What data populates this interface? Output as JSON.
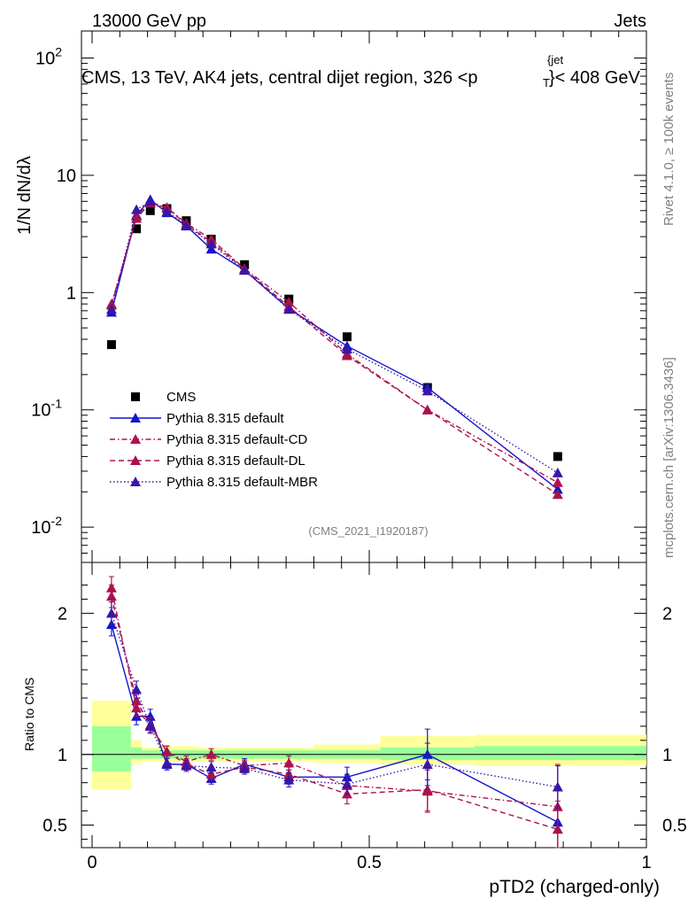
{
  "header": {
    "left": "13000 GeV pp",
    "right": "Jets",
    "title": "CMS, 13 TeV, AK4 jets, central dijet region, 326 <p",
    "title_sup": "{jet",
    "title_sub": "T",
    "title_end": "}< 408 GeV"
  },
  "side": {
    "rivet": "Rivet 4.1.0, ≥ 100k events",
    "mcplots": "mcplots.cern.ch [arXiv:1306.3436]"
  },
  "watermark": "(CMS_2021_I1920187)",
  "ylabel_top": "1/N dN/dλ",
  "ylabel_bottom": "Ratio to CMS",
  "xlabel": "pTD2 (charged-only)",
  "colors": {
    "cms": "#000000",
    "default": "#1515cc",
    "cd": "#b0104f",
    "dl": "#a8124e",
    "mbr": "#3a16a8",
    "band_inner": "#99ff99",
    "band_outer": "#ffff99"
  },
  "chart_data": [
    {
      "type": "scatter",
      "panel": "main",
      "yscale": "log",
      "xlim": [
        0,
        1
      ],
      "ylim": [
        0.005,
        170
      ],
      "y_ticks": [
        "10^-2",
        "10^-1",
        "1",
        "10",
        "10^2"
      ],
      "x": [
        0.035,
        0.08,
        0.105,
        0.135,
        0.17,
        0.215,
        0.275,
        0.355,
        0.46,
        0.605,
        0.84
      ],
      "series": [
        {
          "name": "CMS",
          "style": "square",
          "color": "#000000",
          "values": [
            0.36,
            3.5,
            5.0,
            5.2,
            4.1,
            2.85,
            1.73,
            0.88,
            0.42,
            0.155,
            0.04
          ]
        },
        {
          "name": "Pythia 8.315 default",
          "style": "solid",
          "color": "#1515cc",
          "values": [
            0.68,
            4.6,
            6.2,
            4.8,
            3.7,
            2.35,
            1.55,
            0.73,
            0.35,
            0.155,
            0.021
          ]
        },
        {
          "name": "Pythia 8.315 default-CD",
          "style": "dashdot",
          "color": "#b0104f",
          "values": [
            0.8,
            4.3,
            5.8,
            5.3,
            3.9,
            2.85,
            1.6,
            0.83,
            0.3,
            0.1,
            0.024
          ]
        },
        {
          "name": "Pythia 8.315 default-DL",
          "style": "dashed",
          "color": "#a8124e",
          "values": [
            0.78,
            4.5,
            5.9,
            5.3,
            3.8,
            2.7,
            1.58,
            0.76,
            0.29,
            0.1,
            0.019
          ]
        },
        {
          "name": "Pythia 8.315 default-MBR",
          "style": "dotted",
          "color": "#3a16a8",
          "values": [
            0.72,
            5.1,
            6.0,
            4.9,
            3.75,
            2.6,
            1.55,
            0.72,
            0.33,
            0.145,
            0.029
          ]
        }
      ]
    },
    {
      "type": "line",
      "panel": "ratio",
      "ylabel": "Ratio to CMS",
      "xlabel": "pTD2 (charged-only)",
      "xlim": [
        0,
        1
      ],
      "ylim": [
        0.34,
        2.36
      ],
      "x_ticks": [
        "0",
        "0.5",
        "1"
      ],
      "y_ticks": [
        "0.5",
        "1",
        "2"
      ],
      "band_edges": [
        0,
        0.07,
        0.09,
        0.12,
        0.15,
        0.19,
        0.24,
        0.31,
        0.4,
        0.52,
        0.69,
        1.0
      ],
      "band_inner": [
        [
          0.88,
          1.2
        ],
        [
          0.97,
          1.05
        ],
        [
          0.97,
          1.03
        ],
        [
          0.97,
          1.03
        ],
        [
          0.97,
          1.03
        ],
        [
          0.97,
          1.03
        ],
        [
          0.97,
          1.03
        ],
        [
          0.97,
          1.03
        ],
        [
          0.97,
          1.03
        ],
        [
          0.96,
          1.05
        ],
        [
          0.96,
          1.06
        ]
      ],
      "band_outer": [
        [
          0.75,
          1.38
        ],
        [
          0.93,
          1.1
        ],
        [
          0.95,
          1.05
        ],
        [
          0.95,
          1.06
        ],
        [
          0.95,
          1.06
        ],
        [
          0.95,
          1.05
        ],
        [
          0.95,
          1.05
        ],
        [
          0.95,
          1.05
        ],
        [
          0.94,
          1.07
        ],
        [
          0.93,
          1.13
        ],
        [
          0.92,
          1.14
        ]
      ],
      "x": [
        0.035,
        0.08,
        0.105,
        0.135,
        0.17,
        0.215,
        0.275,
        0.355,
        0.46,
        0.605,
        0.84
      ],
      "series": [
        {
          "name": "Pythia 8.315 default",
          "color": "#1515cc",
          "style": "solid",
          "values": [
            1.92,
            1.27,
            1.27,
            0.93,
            0.93,
            0.83,
            0.93,
            0.84,
            0.84,
            1.0,
            0.52
          ],
          "errors": [
            0.08,
            0.06,
            0.05,
            0.04,
            0.04,
            0.04,
            0.04,
            0.05,
            0.07,
            0.18,
            0.4
          ]
        },
        {
          "name": "Pythia 8.315 default-CD",
          "color": "#b0104f",
          "style": "dashdot",
          "values": [
            2.18,
            1.33,
            1.2,
            1.02,
            0.95,
            1.0,
            0.92,
            0.94,
            0.78,
            0.74,
            0.63
          ],
          "errors": [
            0.08,
            0.06,
            0.05,
            0.04,
            0.04,
            0.04,
            0.04,
            0.05,
            0.07,
            0.15,
            0.3
          ]
        },
        {
          "name": "Pythia 8.315 default-DL",
          "color": "#a8124e",
          "style": "dashed",
          "values": [
            2.12,
            1.38,
            1.21,
            1.02,
            0.93,
            0.86,
            0.91,
            0.86,
            0.72,
            0.75,
            0.47
          ],
          "errors": [
            0.08,
            0.06,
            0.05,
            0.04,
            0.04,
            0.04,
            0.04,
            0.05,
            0.07,
            0.15,
            0.2
          ]
        },
        {
          "name": "Pythia 8.315 default-MBR",
          "color": "#3a16a8",
          "style": "dotted",
          "values": [
            2.0,
            1.46,
            1.2,
            0.94,
            0.92,
            0.91,
            0.9,
            0.82,
            0.79,
            0.93,
            0.77
          ],
          "errors": [
            0.08,
            0.06,
            0.05,
            0.04,
            0.04,
            0.04,
            0.04,
            0.05,
            0.07,
            0.15,
            0.15
          ]
        }
      ]
    }
  ]
}
